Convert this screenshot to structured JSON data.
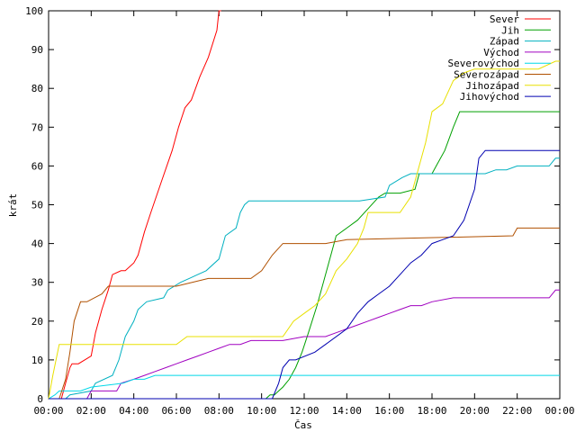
{
  "chart_data": {
    "type": "line",
    "xlabel": "Čas",
    "ylabel": "krát",
    "xlim": [
      0,
      24
    ],
    "ylim": [
      0,
      100
    ],
    "x_ticks": [
      {
        "value": 0,
        "label": "00:00"
      },
      {
        "value": 2,
        "label": "02:00"
      },
      {
        "value": 4,
        "label": "04:00"
      },
      {
        "value": 6,
        "label": "06:00"
      },
      {
        "value": 8,
        "label": "08:00"
      },
      {
        "value": 10,
        "label": "10:00"
      },
      {
        "value": 12,
        "label": "12:00"
      },
      {
        "value": 14,
        "label": "14:00"
      },
      {
        "value": 16,
        "label": "16:00"
      },
      {
        "value": 18,
        "label": "18:00"
      },
      {
        "value": 20,
        "label": "20:00"
      },
      {
        "value": 22,
        "label": "22:00"
      },
      {
        "value": 24,
        "label": "00:00"
      }
    ],
    "y_ticks": [
      0,
      10,
      20,
      30,
      40,
      50,
      60,
      70,
      80,
      90,
      100
    ],
    "grid": false,
    "legend_position": "top-right",
    "series": [
      {
        "name": "Sever",
        "color": "#ff0000",
        "x": [
          0,
          0.6,
          0.8,
          1.0,
          1.1,
          1.4,
          2.0,
          2.2,
          2.5,
          2.8,
          3.0,
          3.4,
          3.6,
          4.0,
          4.2,
          4.5,
          4.8,
          5.3,
          5.8,
          6.1,
          6.4,
          6.7,
          7.1,
          7.5,
          7.9,
          8.0,
          8.1
        ],
        "y": [
          0,
          0,
          4,
          8,
          9,
          9,
          11,
          17,
          23,
          28,
          32,
          33,
          33,
          35,
          37,
          43,
          48,
          56,
          64,
          70,
          75,
          77,
          83,
          88,
          95,
          100,
          100
        ]
      },
      {
        "name": "Jih",
        "color": "#00a000",
        "x": [
          0,
          10.2,
          10.4,
          10.6,
          10.8,
          11.0,
          11.3,
          11.6,
          11.9,
          12.2,
          12.6,
          13.0,
          13.3,
          13.5,
          14.0,
          14.5,
          15.0,
          15.5,
          15.8,
          16.0,
          16.5,
          17.2,
          17.4,
          18.0,
          18.2,
          18.6,
          19.0,
          19.3,
          24
        ],
        "y": [
          0,
          0,
          1,
          1,
          2,
          3,
          5,
          8,
          12,
          17,
          24,
          32,
          38,
          42,
          44,
          46,
          49,
          52,
          53,
          53,
          53,
          54,
          58,
          58,
          60,
          64,
          70,
          74,
          74
        ]
      },
      {
        "name": "Západ",
        "color": "#00b0c0",
        "x": [
          0,
          0.8,
          1.0,
          2.0,
          2.2,
          3.0,
          3.3,
          3.6,
          4.0,
          4.2,
          4.6,
          5.4,
          5.6,
          6.2,
          6.6,
          7.0,
          7.4,
          8.0,
          8.3,
          8.8,
          9.0,
          9.2,
          9.4,
          9.6,
          13.0,
          14.0,
          14.6,
          15.8,
          16.0,
          16.6,
          17.0,
          17.6,
          18.0,
          20.0,
          20.5,
          21.0,
          21.5,
          22.0,
          23.5,
          23.8,
          24
        ],
        "y": [
          0,
          0,
          1,
          2,
          4,
          6,
          10,
          16,
          20,
          23,
          25,
          26,
          28,
          30,
          31,
          32,
          33,
          36,
          42,
          44,
          48,
          50,
          51,
          51,
          51,
          51,
          51,
          52,
          55,
          57,
          58,
          58,
          58,
          58,
          58,
          59,
          59,
          60,
          60,
          62,
          62
        ]
      },
      {
        "name": "Východ",
        "color": "#a000c0",
        "x": [
          0,
          1.8,
          2.0,
          3.2,
          3.4,
          4.0,
          4.5,
          5.0,
          5.5,
          6.0,
          6.5,
          7.0,
          7.5,
          8.0,
          8.5,
          9.0,
          9.5,
          11.0,
          12.0,
          13.0,
          13.5,
          14.0,
          14.5,
          15.0,
          15.5,
          16.0,
          16.5,
          17.0,
          17.5,
          18.0,
          19.0,
          20.0,
          23.5,
          23.8,
          24
        ],
        "y": [
          0,
          0,
          2,
          2,
          4,
          5,
          6,
          7,
          8,
          9,
          10,
          11,
          12,
          13,
          14,
          14,
          15,
          15,
          16,
          16,
          17,
          18,
          19,
          20,
          21,
          22,
          23,
          24,
          24,
          25,
          26,
          26,
          26,
          28,
          28
        ]
      },
      {
        "name": "Severovýchod",
        "color": "#00d8e8",
        "x": [
          0,
          0.3,
          0.5,
          1.5,
          2.0,
          3.5,
          4.0,
          4.5,
          5.0,
          5.5,
          6.0,
          9.5,
          10.0,
          24
        ],
        "y": [
          0,
          1,
          2,
          2,
          3,
          4,
          5,
          5,
          6,
          6,
          6,
          6,
          6,
          6
        ]
      },
      {
        "name": "Severozápad",
        "color": "#b05000",
        "x": [
          0,
          0.5,
          0.8,
          1.0,
          1.2,
          1.5,
          1.8,
          2.5,
          2.8,
          3.0,
          6.0,
          7.5,
          9.5,
          10.0,
          10.5,
          11.0,
          13.0,
          14.0,
          21.8,
          22.0,
          24
        ],
        "y": [
          0,
          0,
          5,
          12,
          20,
          25,
          25,
          27,
          29,
          29,
          29,
          31,
          31,
          33,
          37,
          40,
          40,
          41,
          42,
          44,
          44
        ]
      },
      {
        "name": "Jihozápad",
        "color": "#e8e000",
        "x": [
          0,
          0.2,
          0.5,
          2.0,
          4.0,
          6.0,
          6.5,
          9.0,
          11.0,
          11.5,
          12.0,
          12.5,
          13.0,
          13.5,
          14.0,
          14.5,
          14.8,
          15.0,
          15.5,
          16.5,
          17.0,
          17.3,
          17.7,
          18.0,
          18.5,
          19.0,
          19.5,
          20.0,
          23.0,
          23.8,
          24
        ],
        "y": [
          0,
          6,
          14,
          14,
          14,
          14,
          16,
          16,
          16,
          20,
          22,
          24,
          27,
          33,
          36,
          40,
          44,
          48,
          48,
          48,
          52,
          58,
          66,
          74,
          76,
          82,
          84,
          85,
          85,
          87,
          87
        ]
      },
      {
        "name": "Jihovýchod",
        "color": "#0000b0",
        "x": [
          0,
          10.5,
          10.8,
          11.0,
          11.3,
          11.6,
          12.5,
          13.0,
          14.0,
          14.5,
          15.0,
          15.5,
          16.0,
          16.5,
          17.0,
          17.5,
          18.0,
          18.5,
          19.0,
          19.5,
          20.0,
          20.2,
          20.5,
          24
        ],
        "y": [
          0,
          0,
          4,
          8,
          10,
          10,
          12,
          14,
          18,
          22,
          25,
          27,
          29,
          32,
          35,
          37,
          40,
          41,
          42,
          46,
          54,
          62,
          64,
          64
        ]
      }
    ]
  }
}
